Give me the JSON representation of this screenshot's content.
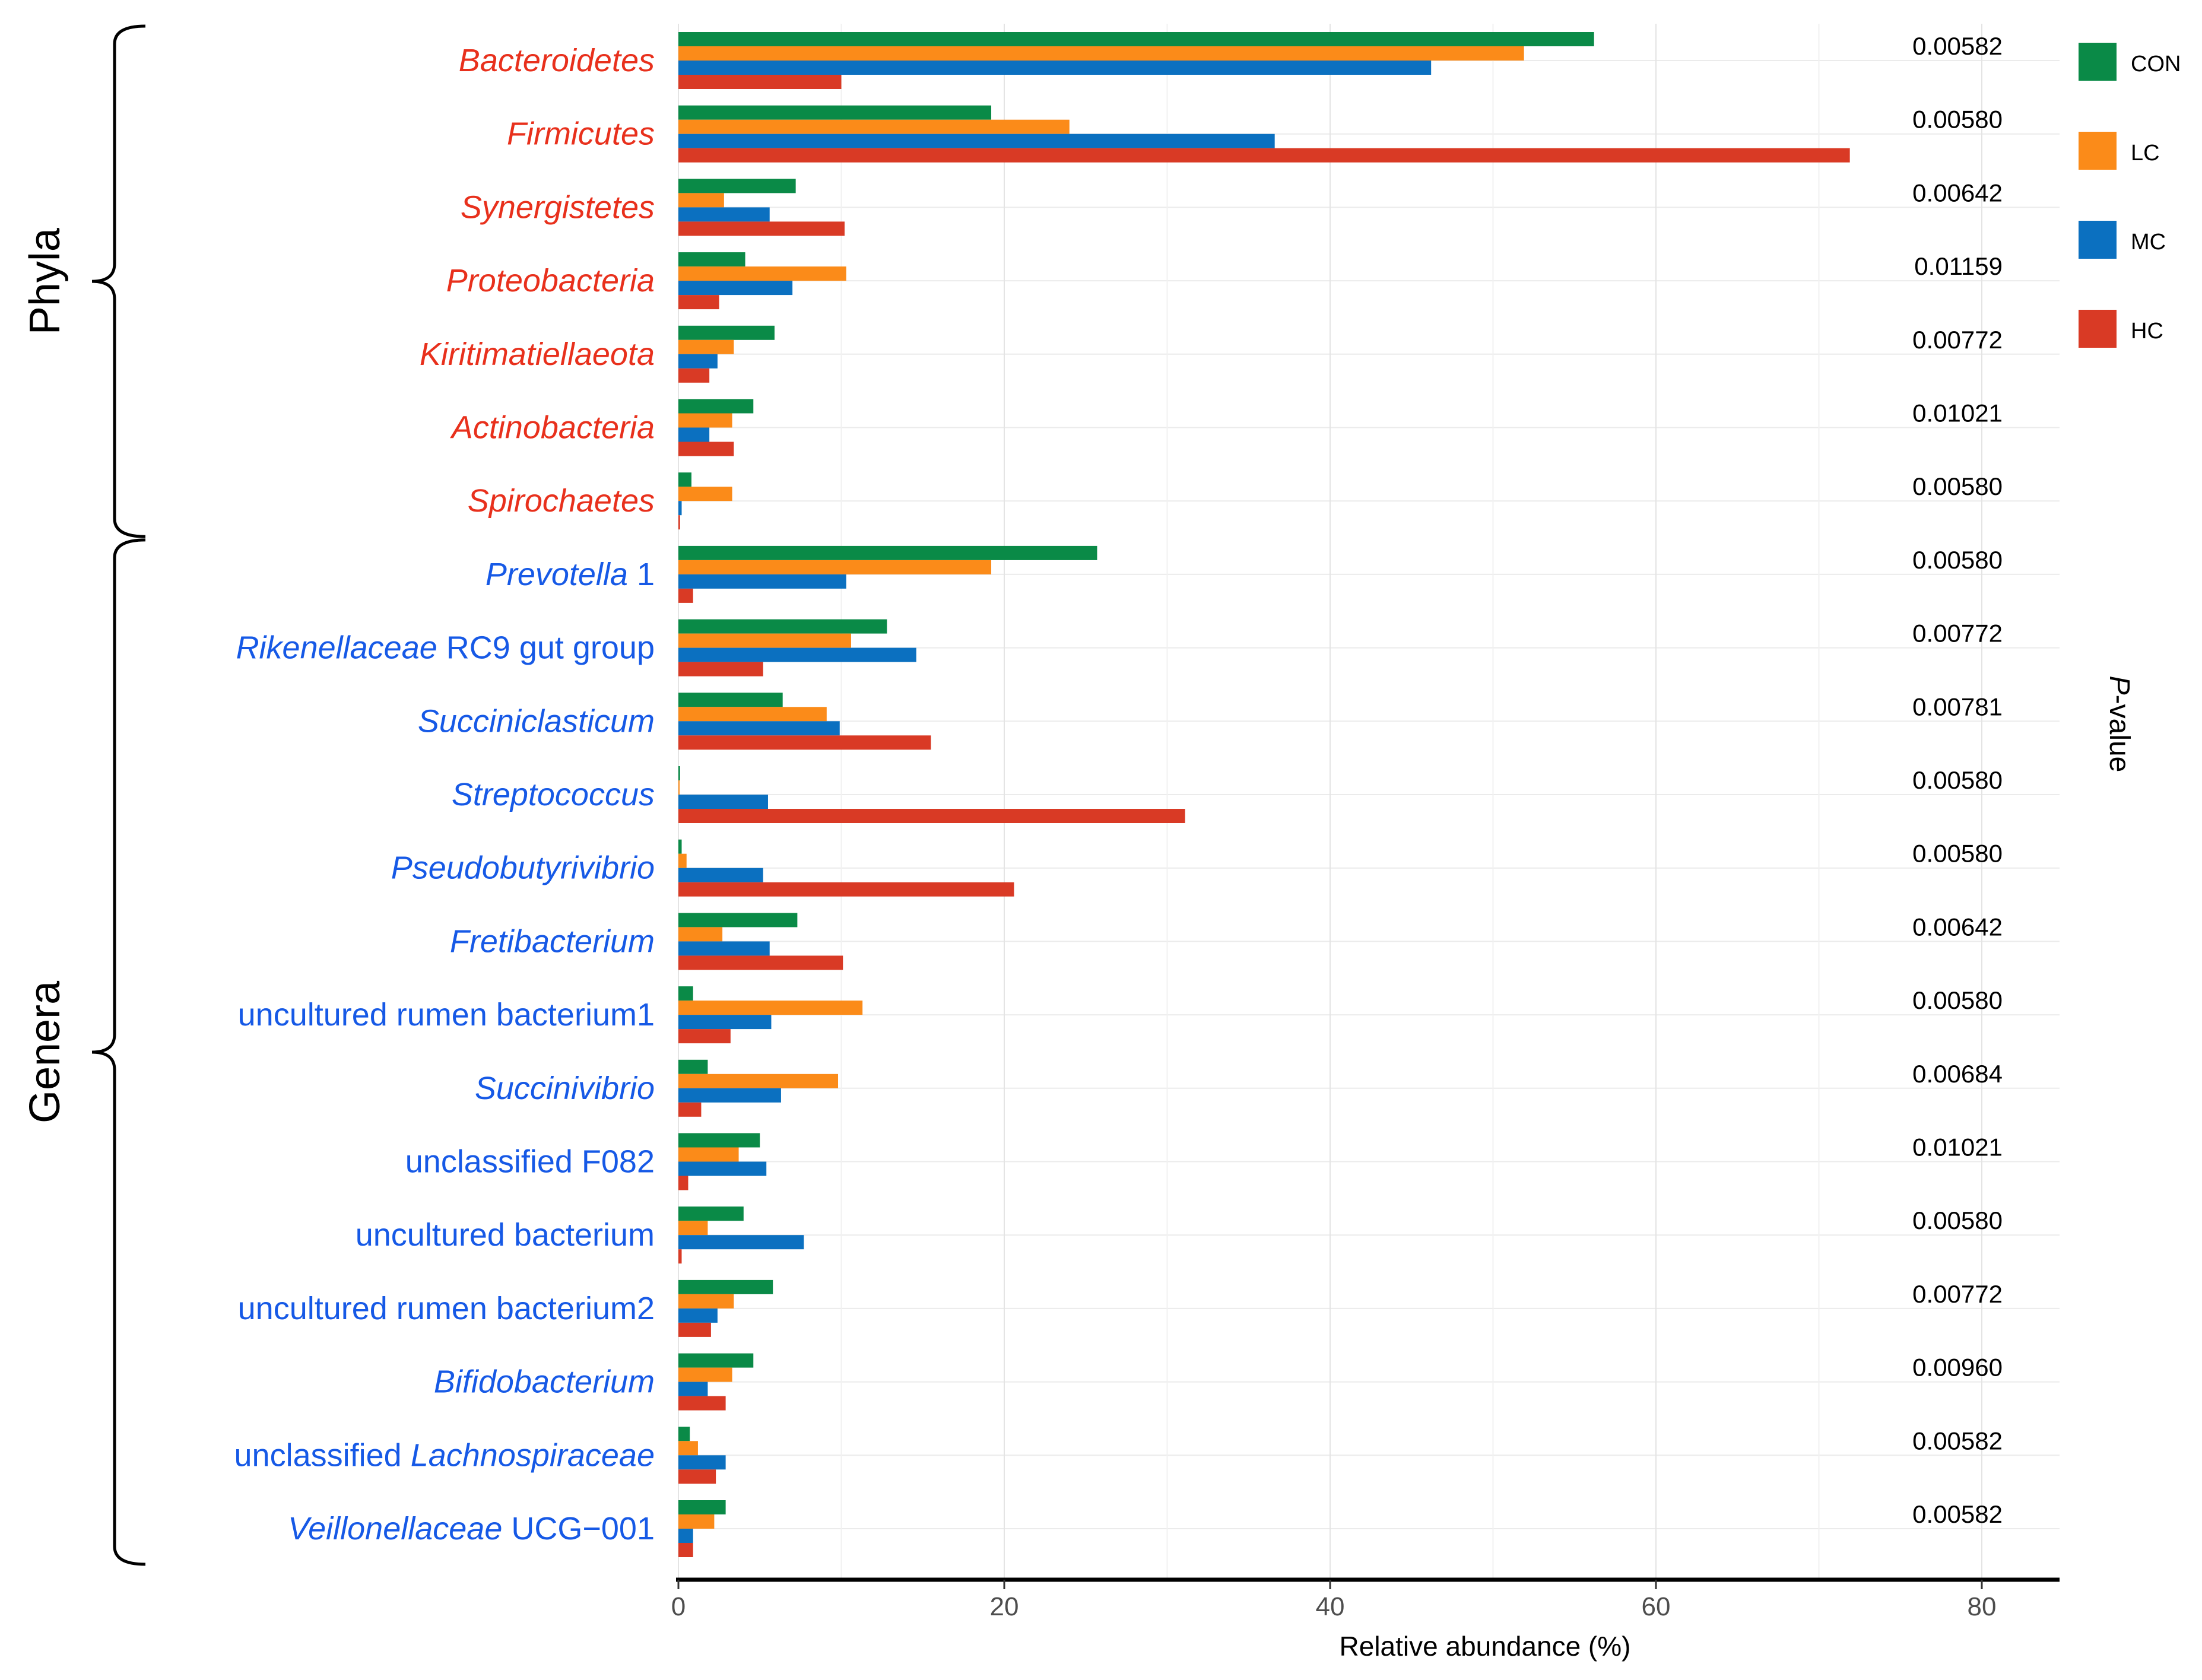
{
  "chart_data": {
    "type": "bar",
    "orientation": "horizontal",
    "xlabel": "Relative abundance (%)",
    "right_axis_label": {
      "italic_part": "P",
      "rest": "-value"
    },
    "xlim": [
      0,
      85
    ],
    "x_ticks": [
      0,
      20,
      40,
      60,
      80
    ],
    "grid": true,
    "legend_position": "top-right",
    "groups": [
      {
        "name": "Phyla",
        "from": 0,
        "to": 6
      },
      {
        "name": "Genera",
        "from": 7,
        "to": 20
      }
    ],
    "categories": [
      {
        "parts": [
          {
            "t": "Bacteroidetes",
            "i": true
          }
        ],
        "color": "#E8301C",
        "pvalue": "0.00582"
      },
      {
        "parts": [
          {
            "t": "Firmicutes",
            "i": true
          }
        ],
        "color": "#E8301C",
        "pvalue": "0.00580"
      },
      {
        "parts": [
          {
            "t": "Synergistetes",
            "i": true
          }
        ],
        "color": "#E8301C",
        "pvalue": "0.00642"
      },
      {
        "parts": [
          {
            "t": "Proteobacteria",
            "i": true
          }
        ],
        "color": "#E8301C",
        "pvalue": "0.01159"
      },
      {
        "parts": [
          {
            "t": "Kiritimatiellaeota",
            "i": true
          }
        ],
        "color": "#E8301C",
        "pvalue": "0.00772"
      },
      {
        "parts": [
          {
            "t": "Actinobacteria",
            "i": true
          }
        ],
        "color": "#E8301C",
        "pvalue": "0.01021"
      },
      {
        "parts": [
          {
            "t": "Spirochaetes",
            "i": true
          }
        ],
        "color": "#E8301C",
        "pvalue": "0.00580"
      },
      {
        "parts": [
          {
            "t": "Prevotella",
            "i": true
          },
          {
            "t": " 1",
            "i": false
          }
        ],
        "color": "#1659E6",
        "pvalue": "0.00580"
      },
      {
        "parts": [
          {
            "t": "Rikenellaceae",
            "i": true
          },
          {
            "t": " RC9 gut group",
            "i": false
          }
        ],
        "color": "#1659E6",
        "pvalue": "0.00772"
      },
      {
        "parts": [
          {
            "t": "Succiniclasticum",
            "i": true
          }
        ],
        "color": "#1659E6",
        "pvalue": "0.00781"
      },
      {
        "parts": [
          {
            "t": "Streptococcus",
            "i": true
          }
        ],
        "color": "#1659E6",
        "pvalue": "0.00580"
      },
      {
        "parts": [
          {
            "t": "Pseudobutyrivibrio",
            "i": true
          }
        ],
        "color": "#1659E6",
        "pvalue": "0.00580"
      },
      {
        "parts": [
          {
            "t": "Fretibacterium",
            "i": true
          }
        ],
        "color": "#1659E6",
        "pvalue": "0.00642"
      },
      {
        "parts": [
          {
            "t": "uncultured rumen bacterium1",
            "i": false
          }
        ],
        "color": "#1659E6",
        "pvalue": "0.00580"
      },
      {
        "parts": [
          {
            "t": "Succinivibrio",
            "i": true
          }
        ],
        "color": "#1659E6",
        "pvalue": "0.00684"
      },
      {
        "parts": [
          {
            "t": "unclassified F082",
            "i": false
          }
        ],
        "color": "#1659E6",
        "pvalue": "0.01021"
      },
      {
        "parts": [
          {
            "t": "uncultured bacterium",
            "i": false
          }
        ],
        "color": "#1659E6",
        "pvalue": "0.00580"
      },
      {
        "parts": [
          {
            "t": "uncultured rumen bacterium2",
            "i": false
          }
        ],
        "color": "#1659E6",
        "pvalue": "0.00772"
      },
      {
        "parts": [
          {
            "t": "Bifidobacterium",
            "i": true
          }
        ],
        "color": "#1659E6",
        "pvalue": "0.00960"
      },
      {
        "parts": [
          {
            "t": "unclassified ",
            "i": false
          },
          {
            "t": "Lachnospiraceae",
            "i": true
          }
        ],
        "color": "#1659E6",
        "pvalue": "0.00582"
      },
      {
        "parts": [
          {
            "t": "Veillonellaceae",
            "i": true
          },
          {
            "t": " UCG−001",
            "i": false
          }
        ],
        "color": "#1659E6",
        "pvalue": "0.00582"
      }
    ],
    "series": [
      {
        "name": "CON",
        "color": "#0A8A47",
        "values": [
          56.2,
          19.2,
          7.2,
          4.1,
          5.9,
          4.6,
          0.8,
          25.7,
          12.8,
          6.4,
          0.1,
          0.2,
          7.3,
          0.9,
          1.8,
          5.0,
          4.0,
          5.8,
          4.6,
          0.7,
          2.9
        ]
      },
      {
        "name": "LC",
        "color": "#FB8B19",
        "values": [
          51.9,
          24.0,
          2.8,
          10.3,
          3.4,
          3.3,
          3.3,
          19.2,
          10.6,
          9.1,
          0.05,
          0.5,
          2.7,
          11.3,
          9.8,
          3.7,
          1.8,
          3.4,
          3.3,
          1.2,
          2.2
        ]
      },
      {
        "name": "MC",
        "color": "#0B70C0",
        "values": [
          46.2,
          36.6,
          5.6,
          7.0,
          2.4,
          1.9,
          0.2,
          10.3,
          14.6,
          9.9,
          5.5,
          5.2,
          5.6,
          5.7,
          6.3,
          5.4,
          7.7,
          2.4,
          1.8,
          2.9,
          0.9
        ]
      },
      {
        "name": "HC",
        "color": "#D93A25",
        "values": [
          10.0,
          71.9,
          10.2,
          2.5,
          1.9,
          3.4,
          0.1,
          0.9,
          5.2,
          15.5,
          31.1,
          20.6,
          10.1,
          3.2,
          1.4,
          0.6,
          0.2,
          2.0,
          2.9,
          2.3,
          0.9
        ]
      }
    ]
  }
}
